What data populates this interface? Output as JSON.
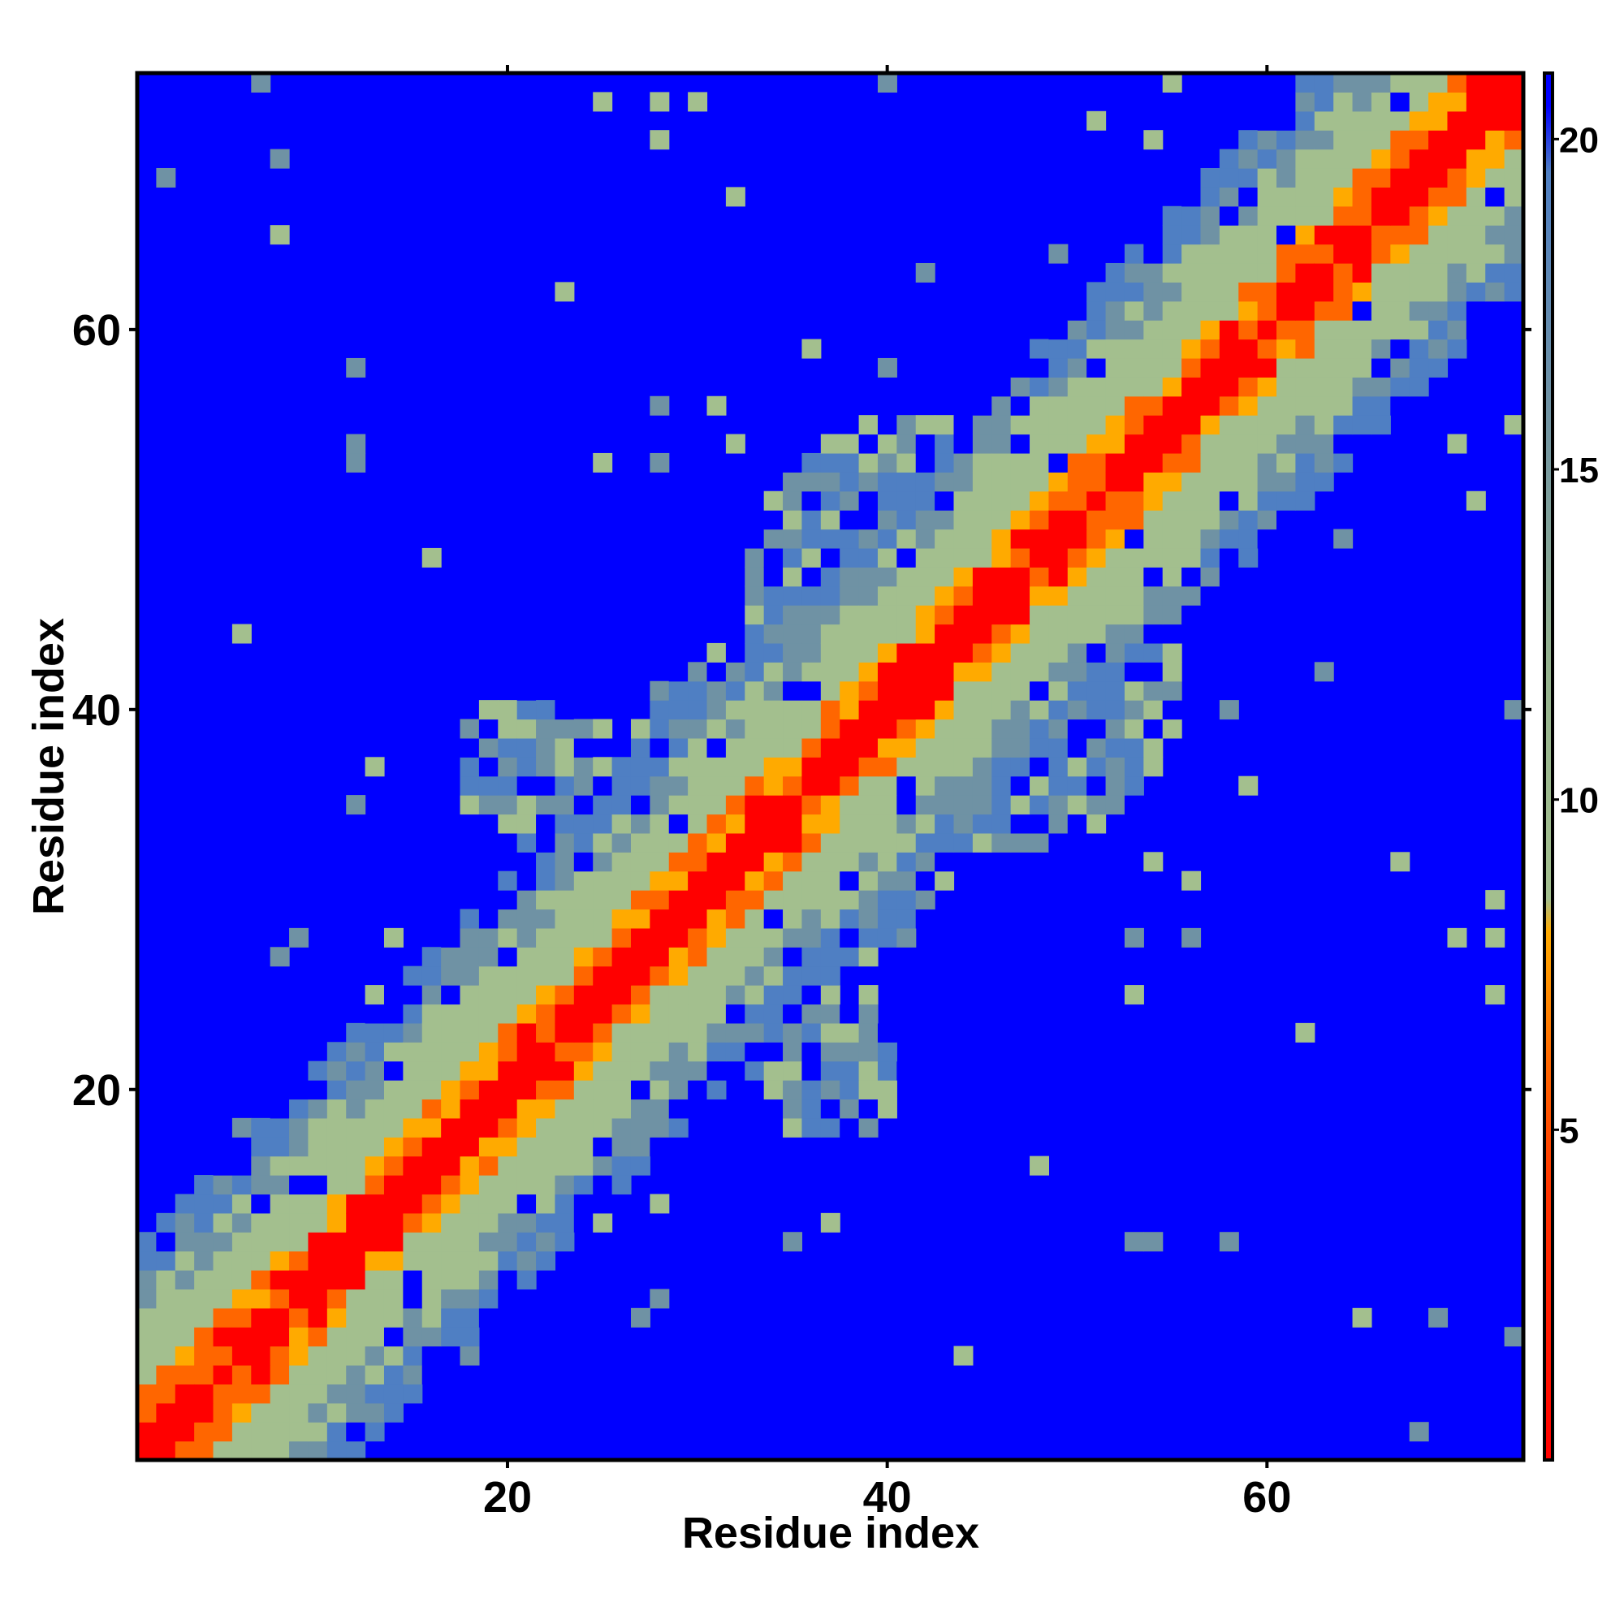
{
  "chart_data": {
    "type": "heatmap",
    "title": "",
    "xlabel": "Residue index",
    "ylabel": "Residue index",
    "n_residues": 73,
    "xlim": [
      0.5,
      73.5
    ],
    "ylim": [
      0.5,
      73.5
    ],
    "x_ticks": [
      20,
      40,
      60
    ],
    "y_ticks": [
      20,
      40,
      60
    ],
    "x_tick_labels": [
      "20",
      "40",
      "60"
    ],
    "y_tick_labels": [
      "20",
      "40",
      "60"
    ],
    "legend_placement": "right colorbar",
    "colorbar": {
      "ticks": [
        5,
        10,
        15,
        20
      ],
      "tick_labels": [
        "5",
        "10",
        "15",
        "20"
      ],
      "range": [
        0,
        21
      ],
      "stops": [
        {
          "value": 0,
          "color": "#ff0000"
        },
        {
          "value": 4,
          "color": "#ff3300"
        },
        {
          "value": 6,
          "color": "#ff6600"
        },
        {
          "value": 8,
          "color": "#ffaa00"
        },
        {
          "value": 8.5,
          "color": "#a3bf8e"
        },
        {
          "value": 12,
          "color": "#95b38e"
        },
        {
          "value": 16,
          "color": "#6f92a4"
        },
        {
          "value": 19.5,
          "color": "#4f7fc3"
        },
        {
          "value": 20.5,
          "color": "#0000ff"
        },
        {
          "value": 21,
          "color": "#0000ff"
        }
      ]
    },
    "cutoff_value": 21,
    "colors": {
      "background": "#0000ff",
      "diagonal": "#ff0000",
      "near": "#ff6600",
      "mid": "#ffaa00",
      "green": "#a3bf8e",
      "steel": "#6f92a4",
      "lightblue": "#4f7fc3"
    }
  }
}
